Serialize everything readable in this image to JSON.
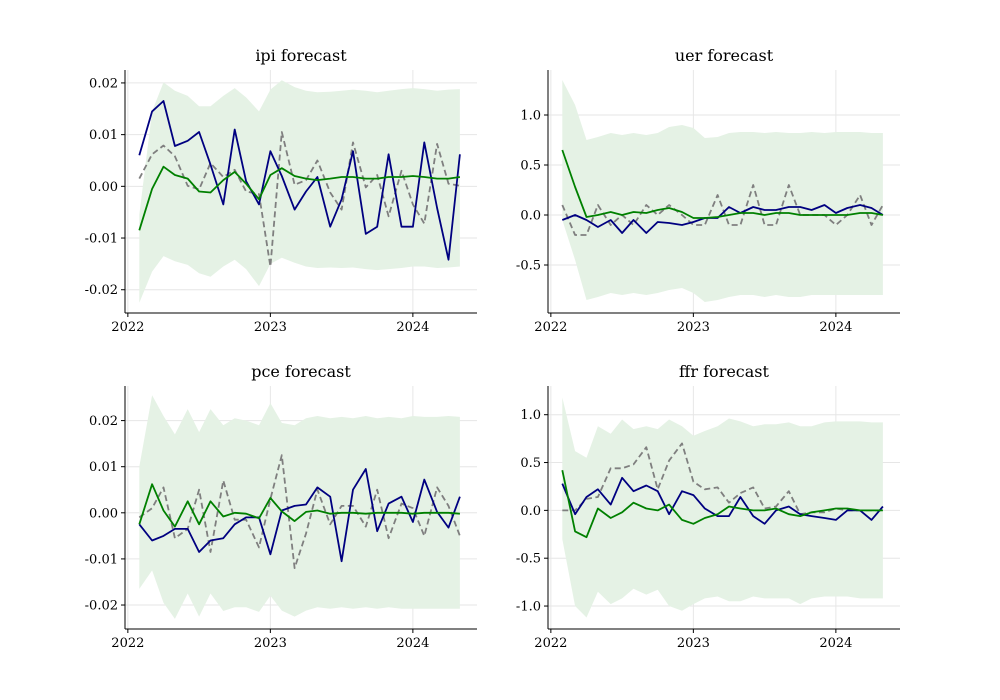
{
  "chart_data": [
    {
      "type": "line",
      "title": "ipi forecast",
      "xlabel": "",
      "ylabel": "",
      "x_ticks": [
        "2022",
        "2023",
        "2024"
      ],
      "y_ticks": [
        "0.02",
        "0.01",
        "0.00",
        "-0.01",
        "-0.02"
      ],
      "y_tick_values": [
        0.02,
        0.01,
        0.0,
        -0.01,
        -0.02
      ],
      "ylim": [
        -0.0245,
        0.0225
      ],
      "xlim": [
        2021.98,
        2024.45
      ],
      "grid": true,
      "x": [
        2022.08,
        2022.17,
        2022.25,
        2022.33,
        2022.42,
        2022.5,
        2022.58,
        2022.67,
        2022.75,
        2022.83,
        2022.92,
        2023.0,
        2023.08,
        2023.17,
        2023.25,
        2023.33,
        2023.42,
        2023.5,
        2023.58,
        2023.67,
        2023.75,
        2023.83,
        2023.92,
        2024.0,
        2024.08,
        2024.17,
        2024.25,
        2024.33
      ],
      "series": [
        {
          "role": "band",
          "color": "#e5f2e5",
          "upper": [
            -0.0055,
            0.0145,
            0.0201,
            0.0185,
            0.0175,
            0.0155,
            0.0155,
            0.0175,
            0.019,
            0.0172,
            0.0145,
            0.0187,
            0.0205,
            0.0192,
            0.0185,
            0.0182,
            0.0183,
            0.0185,
            0.0187,
            0.0185,
            0.0182,
            0.0185,
            0.0188,
            0.019,
            0.0188,
            0.0185,
            0.0187,
            0.0188
          ],
          "lower": [
            -0.0225,
            -0.0165,
            -0.0135,
            -0.0145,
            -0.0152,
            -0.0168,
            -0.0175,
            -0.0155,
            -0.0142,
            -0.016,
            -0.0193,
            -0.015,
            -0.0138,
            -0.0148,
            -0.0155,
            -0.0158,
            -0.0157,
            -0.0158,
            -0.0157,
            -0.016,
            -0.0162,
            -0.016,
            -0.0158,
            -0.0155,
            -0.0155,
            -0.0158,
            -0.0157,
            -0.0155
          ]
        },
        {
          "role": "actual",
          "color": "#7f7f7f",
          "dashed": true,
          "values": [
            0.0015,
            0.0062,
            0.0079,
            0.0058,
            0.0001,
            -0.0006,
            0.0045,
            0.0018,
            0.0032,
            -0.001,
            -0.0015,
            -0.0155,
            0.0105,
            0.0003,
            0.0012,
            0.005,
            -0.0012,
            -0.0045,
            0.0085,
            -0.0002,
            0.0022,
            -0.0058,
            0.003,
            -0.0035,
            -0.0072,
            0.0082,
            0.0005,
            0.0001
          ]
        },
        {
          "role": "forecast",
          "color": "#000080",
          "values": [
            0.006,
            0.0145,
            0.0165,
            0.0078,
            0.0088,
            0.0105,
            0.0042,
            -0.0035,
            0.011,
            0.001,
            -0.0035,
            0.0068,
            0.002,
            -0.0045,
            -0.001,
            0.0018,
            -0.0078,
            -0.0025,
            0.0068,
            -0.0092,
            -0.0078,
            0.0062,
            -0.0078,
            -0.0078,
            0.0085,
            -0.0042,
            -0.0142,
            0.0062
          ]
        },
        {
          "role": "mean",
          "color": "#008000",
          "values": [
            -0.0085,
            -0.0005,
            0.0038,
            0.0022,
            0.0015,
            -0.001,
            -0.0012,
            0.0012,
            0.0028,
            0.0005,
            -0.0025,
            0.0022,
            0.0035,
            0.002,
            0.0015,
            0.0012,
            0.0015,
            0.0018,
            0.0018,
            0.0015,
            0.0015,
            0.0018,
            0.0018,
            0.002,
            0.0018,
            0.0015,
            0.0015,
            0.0018
          ]
        }
      ]
    },
    {
      "type": "line",
      "title": "uer forecast",
      "xlabel": "",
      "ylabel": "",
      "x_ticks": [
        "2022",
        "2023",
        "2024"
      ],
      "y_ticks": [
        "1.0",
        "0.5",
        "0.0",
        "-0.5"
      ],
      "y_tick_values": [
        1.0,
        0.5,
        0.0,
        -0.5
      ],
      "ylim": [
        -0.98,
        1.45
      ],
      "xlim": [
        2021.98,
        2024.45
      ],
      "grid": true,
      "x": [
        2022.08,
        2022.17,
        2022.25,
        2022.33,
        2022.42,
        2022.5,
        2022.58,
        2022.67,
        2022.75,
        2022.83,
        2022.92,
        2023.0,
        2023.08,
        2023.17,
        2023.25,
        2023.33,
        2023.42,
        2023.5,
        2023.58,
        2023.67,
        2023.75,
        2023.83,
        2023.92,
        2024.0,
        2024.08,
        2024.17,
        2024.25,
        2024.33
      ],
      "series": [
        {
          "role": "band",
          "color": "#e5f2e5",
          "upper": [
            1.35,
            1.1,
            0.75,
            0.78,
            0.82,
            0.8,
            0.82,
            0.8,
            0.82,
            0.88,
            0.9,
            0.87,
            0.77,
            0.78,
            0.82,
            0.83,
            0.83,
            0.82,
            0.83,
            0.82,
            0.82,
            0.83,
            0.82,
            0.83,
            0.83,
            0.83,
            0.82,
            0.82
          ],
          "lower": [
            -0.05,
            -0.45,
            -0.85,
            -0.82,
            -0.78,
            -0.8,
            -0.78,
            -0.8,
            -0.78,
            -0.75,
            -0.73,
            -0.78,
            -0.87,
            -0.85,
            -0.82,
            -0.8,
            -0.8,
            -0.82,
            -0.8,
            -0.82,
            -0.82,
            -0.8,
            -0.8,
            -0.8,
            -0.8,
            -0.8,
            -0.8,
            -0.8
          ]
        },
        {
          "role": "actual",
          "color": "#7f7f7f",
          "dashed": true,
          "values": [
            0.1,
            -0.2,
            -0.2,
            0.1,
            -0.1,
            0.0,
            -0.1,
            0.1,
            0.0,
            0.1,
            0.0,
            -0.1,
            -0.1,
            0.2,
            -0.1,
            -0.1,
            0.3,
            -0.1,
            -0.1,
            0.3,
            0.0,
            0.0,
            0.0,
            -0.1,
            0.0,
            0.2,
            -0.1,
            0.1
          ]
        },
        {
          "role": "forecast",
          "color": "#000080",
          "values": [
            -0.05,
            0.0,
            -0.05,
            -0.12,
            -0.05,
            -0.18,
            -0.05,
            -0.18,
            -0.07,
            -0.08,
            -0.1,
            -0.07,
            -0.03,
            -0.03,
            0.08,
            0.02,
            0.08,
            0.05,
            0.05,
            0.08,
            0.08,
            0.05,
            0.1,
            0.02,
            0.07,
            0.1,
            0.07,
            0.0
          ]
        },
        {
          "role": "mean",
          "color": "#008000",
          "values": [
            0.65,
            0.28,
            -0.02,
            0.0,
            0.03,
            0.0,
            0.03,
            0.02,
            0.05,
            0.07,
            0.03,
            -0.03,
            -0.03,
            -0.02,
            0.0,
            0.02,
            0.02,
            0.0,
            0.02,
            0.02,
            0.0,
            0.0,
            0.0,
            0.0,
            0.0,
            0.02,
            0.02,
            0.0
          ]
        }
      ]
    },
    {
      "type": "line",
      "title": "pce forecast",
      "xlabel": "",
      "ylabel": "",
      "x_ticks": [
        "2022",
        "2023",
        "2024"
      ],
      "y_ticks": [
        "0.02",
        "0.01",
        "0.00",
        "-0.01",
        "-0.02"
      ],
      "y_tick_values": [
        0.02,
        0.01,
        0.0,
        -0.01,
        -0.02
      ],
      "ylim": [
        -0.0252,
        0.0275
      ],
      "xlim": [
        2021.98,
        2024.45
      ],
      "grid": true,
      "x": [
        2022.08,
        2022.17,
        2022.25,
        2022.33,
        2022.42,
        2022.5,
        2022.58,
        2022.67,
        2022.75,
        2022.83,
        2022.92,
        2023.0,
        2023.08,
        2023.17,
        2023.25,
        2023.33,
        2023.42,
        2023.5,
        2023.58,
        2023.67,
        2023.75,
        2023.83,
        2023.92,
        2024.0,
        2024.08,
        2024.17,
        2024.25,
        2024.33
      ],
      "series": [
        {
          "role": "band",
          "color": "#e5f2e5",
          "upper": [
            0.01,
            0.0255,
            0.021,
            0.017,
            0.0225,
            0.0175,
            0.0225,
            0.019,
            0.0205,
            0.02,
            0.019,
            0.0238,
            0.0195,
            0.019,
            0.0205,
            0.021,
            0.0205,
            0.0208,
            0.0205,
            0.021,
            0.0205,
            0.0208,
            0.0205,
            0.021,
            0.0208,
            0.0208,
            0.021,
            0.0208
          ],
          "lower": [
            -0.0165,
            -0.0125,
            -0.0195,
            -0.023,
            -0.0175,
            -0.0225,
            -0.0175,
            -0.0213,
            -0.0205,
            -0.0205,
            -0.0215,
            -0.018,
            -0.0212,
            -0.0225,
            -0.0212,
            -0.0205,
            -0.0208,
            -0.0205,
            -0.0208,
            -0.0205,
            -0.0208,
            -0.0205,
            -0.0208,
            -0.0208,
            -0.0208,
            -0.0208,
            -0.0208,
            -0.0208
          ]
        },
        {
          "role": "actual",
          "color": "#7f7f7f",
          "dashed": true,
          "values": [
            -0.001,
            0.001,
            0.0055,
            -0.0055,
            -0.0035,
            0.005,
            -0.0085,
            0.007,
            -0.0015,
            -0.0015,
            -0.0075,
            0.003,
            0.0125,
            -0.012,
            -0.0045,
            0.005,
            -0.0025,
            0.0015,
            0.0015,
            -0.003,
            0.005,
            -0.0055,
            0.002,
            0.001,
            -0.005,
            0.0055,
            0.0015,
            -0.005
          ]
        },
        {
          "role": "forecast",
          "color": "#000080",
          "values": [
            -0.0025,
            -0.006,
            -0.005,
            -0.0035,
            -0.0035,
            -0.0085,
            -0.006,
            -0.0055,
            -0.0025,
            -0.001,
            -0.001,
            -0.009,
            0.0005,
            0.0015,
            0.0018,
            0.0055,
            0.0035,
            -0.0105,
            0.005,
            0.0095,
            -0.004,
            0.002,
            0.0035,
            -0.002,
            0.0072,
            0.0002,
            -0.0032,
            0.0035
          ]
        },
        {
          "role": "mean",
          "color": "#008000",
          "values": [
            -0.0025,
            0.0062,
            0.0005,
            -0.003,
            0.0025,
            -0.0025,
            0.0025,
            -0.0008,
            0.0,
            -0.0002,
            -0.0012,
            0.0032,
            0.0003,
            -0.0018,
            0.0002,
            0.0005,
            -0.0002,
            0.0,
            0.0,
            -0.0002,
            0.0,
            0.0,
            0.0,
            -0.0002,
            0.0,
            0.0,
            0.0,
            -0.0002
          ]
        }
      ]
    },
    {
      "type": "line",
      "title": "ffr forecast",
      "xlabel": "",
      "ylabel": "",
      "x_ticks": [
        "2022",
        "2023",
        "2024"
      ],
      "y_ticks": [
        "1.0",
        "0.5",
        "0.0",
        "-0.5",
        "-1.0"
      ],
      "y_tick_values": [
        1.0,
        0.5,
        0.0,
        -0.5,
        -1.0
      ],
      "ylim": [
        -1.24,
        1.3
      ],
      "xlim": [
        2021.98,
        2024.45
      ],
      "grid": true,
      "x": [
        2022.08,
        2022.17,
        2022.25,
        2022.33,
        2022.42,
        2022.5,
        2022.58,
        2022.67,
        2022.75,
        2022.83,
        2022.92,
        2023.0,
        2023.08,
        2023.17,
        2023.25,
        2023.33,
        2023.42,
        2023.5,
        2023.58,
        2023.67,
        2023.75,
        2023.83,
        2023.92,
        2024.0,
        2024.08,
        2024.17,
        2024.25,
        2024.33
      ],
      "series": [
        {
          "role": "band",
          "color": "#e5f2e5",
          "upper": [
            1.18,
            0.62,
            0.55,
            0.88,
            0.8,
            0.95,
            0.85,
            0.88,
            0.85,
            0.95,
            0.88,
            0.78,
            0.83,
            0.88,
            0.96,
            0.93,
            0.88,
            0.9,
            0.9,
            0.92,
            0.88,
            0.88,
            0.92,
            0.93,
            0.93,
            0.93,
            0.92,
            0.92
          ],
          "lower": [
            -0.3,
            -1.0,
            -1.12,
            -0.85,
            -0.98,
            -0.92,
            -0.82,
            -0.88,
            -0.83,
            -1.0,
            -1.05,
            -0.98,
            -0.92,
            -0.9,
            -0.95,
            -0.95,
            -0.9,
            -0.92,
            -0.92,
            -0.92,
            -0.98,
            -0.92,
            -0.9,
            -0.9,
            -0.9,
            -0.92,
            -0.92,
            -0.92
          ]
        },
        {
          "role": "actual",
          "color": "#7f7f7f",
          "dashed": true,
          "values": [
            0.0,
            0.0,
            0.12,
            0.14,
            0.44,
            0.44,
            0.48,
            0.66,
            0.22,
            0.52,
            0.7,
            0.3,
            0.22,
            0.24,
            0.08,
            0.18,
            0.24,
            0.02,
            0.04,
            0.2,
            -0.04,
            -0.02,
            -0.02,
            0.02,
            0.0,
            0.0,
            0.0,
            0.0
          ]
        },
        {
          "role": "forecast",
          "color": "#000080",
          "values": [
            0.28,
            -0.04,
            0.14,
            0.22,
            0.06,
            0.34,
            0.2,
            0.26,
            0.2,
            -0.04,
            0.2,
            0.16,
            0.02,
            -0.06,
            -0.06,
            0.14,
            -0.06,
            -0.14,
            0.0,
            0.04,
            -0.04,
            -0.06,
            -0.08,
            -0.1,
            0.0,
            0.0,
            -0.1,
            0.04
          ]
        },
        {
          "role": "mean",
          "color": "#008000",
          "values": [
            0.42,
            -0.22,
            -0.28,
            0.02,
            -0.08,
            -0.02,
            0.08,
            0.02,
            0.0,
            0.06,
            -0.1,
            -0.14,
            -0.08,
            -0.04,
            0.04,
            0.02,
            0.0,
            0.0,
            0.02,
            -0.04,
            -0.06,
            -0.02,
            0.0,
            0.02,
            0.02,
            0.0,
            0.0,
            0.0
          ]
        }
      ]
    }
  ]
}
